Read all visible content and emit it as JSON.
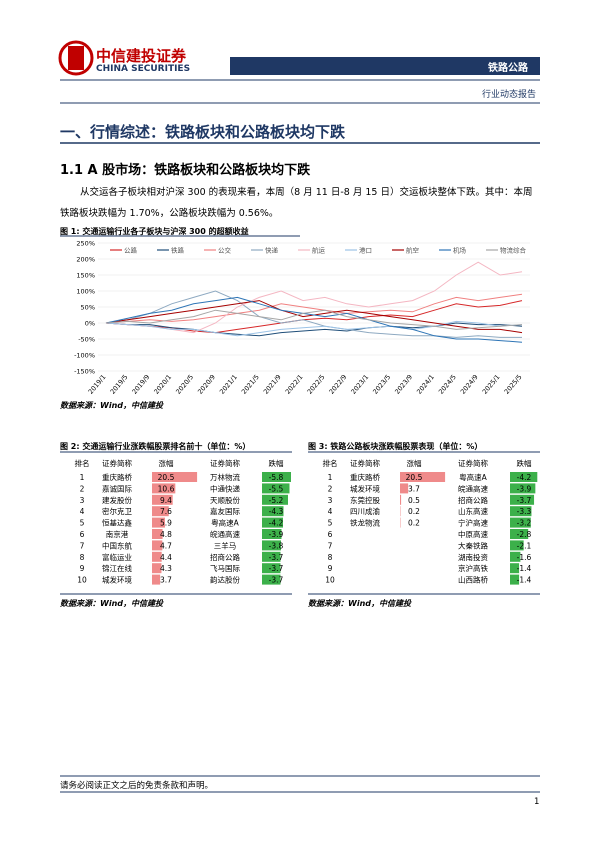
{
  "header": {
    "company": "中信建投证券",
    "company_en": "CHINA SECURITIES",
    "sector": "铁路公路",
    "report_type": "行业动态报告"
  },
  "section_title": "一、行情综述：铁路板块和公路板块均下跌",
  "subsection_title": "1.1 A 股市场：铁路板块和公路板块均下跌",
  "paragraph": "从交运各子板块相对沪深 300 的表现来看，本周（8 月 11 日-8 月 15 日）交运板块整体下跌。其中：本周铁路板块跌幅为 1.70%，公路板块跌幅为 0.56%。",
  "figure1": {
    "caption": "图 1: 交通运输行业各子板块与沪深 300 的超额收益",
    "source": "数据来源：Wind，中信建投"
  },
  "chart_data": {
    "type": "line",
    "categories": [
      "2019/1",
      "2019/5",
      "2019/9",
      "2020/1",
      "2020/5",
      "2020/9",
      "2021/1",
      "2021/5",
      "2021/9",
      "2022/1",
      "2022/5",
      "2022/9",
      "2023/1",
      "2023/5",
      "2023/9",
      "2024/1",
      "2024/5",
      "2024/9",
      "2025/1",
      "2025/5"
    ],
    "series": [
      {
        "name": "公路",
        "color": "#d62728",
        "values": [
          0,
          -5,
          -10,
          -15,
          -25,
          -30,
          -20,
          -10,
          0,
          10,
          15,
          10,
          20,
          25,
          20,
          40,
          60,
          50,
          55,
          70
        ]
      },
      {
        "name": "铁路",
        "color": "#1f4e79",
        "values": [
          0,
          -5,
          -5,
          -15,
          -20,
          -30,
          -35,
          -40,
          -30,
          -25,
          -20,
          -25,
          -15,
          -10,
          -15,
          -10,
          0,
          -5,
          -5,
          -10
        ]
      },
      {
        "name": "公交",
        "color": "#f08080",
        "values": [
          0,
          5,
          10,
          5,
          10,
          20,
          30,
          40,
          60,
          50,
          40,
          30,
          35,
          40,
          35,
          60,
          80,
          70,
          80,
          90
        ]
      },
      {
        "name": "快递",
        "color": "#8ea9c1",
        "values": [
          0,
          10,
          30,
          60,
          80,
          100,
          70,
          20,
          0,
          10,
          -10,
          -20,
          -30,
          -35,
          -40,
          -40,
          -45,
          -40,
          -45,
          -45
        ]
      },
      {
        "name": "航运",
        "color": "#f4b6c2",
        "values": [
          0,
          -5,
          -10,
          -20,
          -30,
          0,
          50,
          80,
          100,
          70,
          80,
          60,
          50,
          60,
          70,
          100,
          150,
          190,
          150,
          160
        ]
      },
      {
        "name": "港口",
        "color": "#9dc3e6",
        "values": [
          0,
          -5,
          -10,
          -20,
          -20,
          -30,
          -40,
          -30,
          -20,
          -15,
          -10,
          -20,
          -15,
          -10,
          -20,
          -10,
          5,
          0,
          -10,
          -5
        ]
      },
      {
        "name": "航空",
        "color": "#a50000",
        "values": [
          0,
          10,
          20,
          30,
          40,
          50,
          60,
          70,
          40,
          20,
          30,
          40,
          30,
          20,
          10,
          0,
          -10,
          -20,
          -20,
          -30
        ]
      },
      {
        "name": "机场",
        "color": "#2e75b6",
        "values": [
          0,
          15,
          30,
          40,
          60,
          70,
          80,
          60,
          40,
          30,
          20,
          30,
          10,
          -10,
          -20,
          -40,
          -50,
          -50,
          -55,
          -60
        ]
      },
      {
        "name": "物流综合",
        "color": "#a6a6a6",
        "values": [
          0,
          5,
          0,
          10,
          20,
          40,
          30,
          20,
          10,
          30,
          40,
          20,
          10,
          0,
          -5,
          -10,
          -20,
          -15,
          -10,
          -5
        ]
      }
    ],
    "ylim": [
      -150,
      250
    ],
    "yticks": [
      {
        "value": -150,
        "label": "-150%"
      },
      {
        "value": -100,
        "label": "-100%"
      },
      {
        "value": -50,
        "label": "-50%"
      },
      {
        "value": 0,
        "label": "0%"
      },
      {
        "value": 50,
        "label": "50%"
      },
      {
        "value": 100,
        "label": "100%"
      },
      {
        "value": 150,
        "label": "150%"
      },
      {
        "value": 200,
        "label": "200%"
      },
      {
        "value": 250,
        "label": "250%"
      }
    ]
  },
  "figure2": {
    "caption": "图 2: 交通运输行业涨跌幅股票排名前十（单位：%）",
    "columns": [
      "排名",
      "证券简称",
      "涨幅",
      "证券简称",
      "跌幅"
    ],
    "rows": [
      [
        1,
        "重庆路桥",
        20.5,
        "万林物流",
        -5.8
      ],
      [
        2,
        "嘉诚国际",
        10.6,
        "中通快递",
        -5.5
      ],
      [
        3,
        "建发股份",
        9.4,
        "天顺股份",
        -5.2
      ],
      [
        4,
        "密尔克卫",
        7.6,
        "嘉友国际",
        -4.3
      ],
      [
        5,
        "恒基达鑫",
        5.9,
        "粤高速A",
        -4.2
      ],
      [
        6,
        "南京港",
        4.8,
        "皖通高速",
        -3.9
      ],
      [
        7,
        "中国东航",
        4.7,
        "三羊马",
        -3.8
      ],
      [
        8,
        "富临运业",
        4.4,
        "招商公路",
        -3.7
      ],
      [
        9,
        "锦江在线",
        4.3,
        "飞马国际",
        -3.7
      ],
      [
        10,
        "城发环境",
        3.7,
        "韵达股份",
        -3.7
      ]
    ],
    "source": "数据来源：Wind，中信建投"
  },
  "figure3": {
    "caption": "图 3: 铁路公路板块涨跌幅股票表现（单位：%）",
    "columns": [
      "排名",
      "证券简称",
      "涨幅",
      "证券简称",
      "跌幅"
    ],
    "rows": [
      [
        1,
        "重庆路桥",
        20.5,
        "粤高速A",
        -4.2
      ],
      [
        2,
        "城发环境",
        3.7,
        "皖通高速",
        -3.9
      ],
      [
        3,
        "东莞控股",
        0.5,
        "招商公路",
        -3.7
      ],
      [
        4,
        "四川成渝",
        0.2,
        "山东高速",
        -3.3
      ],
      [
        5,
        "铁龙物流",
        0.2,
        "宁沪高速",
        -3.2
      ],
      [
        6,
        null,
        null,
        "中原高速",
        -2.8
      ],
      [
        7,
        null,
        null,
        "大秦铁路",
        -2.1
      ],
      [
        8,
        null,
        null,
        "湖南投资",
        -1.6
      ],
      [
        9,
        null,
        null,
        "京沪高铁",
        -1.4
      ],
      [
        10,
        null,
        null,
        "山西路桥",
        -1.4
      ]
    ],
    "source": "数据来源：Wind，中信建投"
  },
  "footer": {
    "disclaimer": "请务必阅读正文之后的免责条款和声明。",
    "page": 1
  }
}
